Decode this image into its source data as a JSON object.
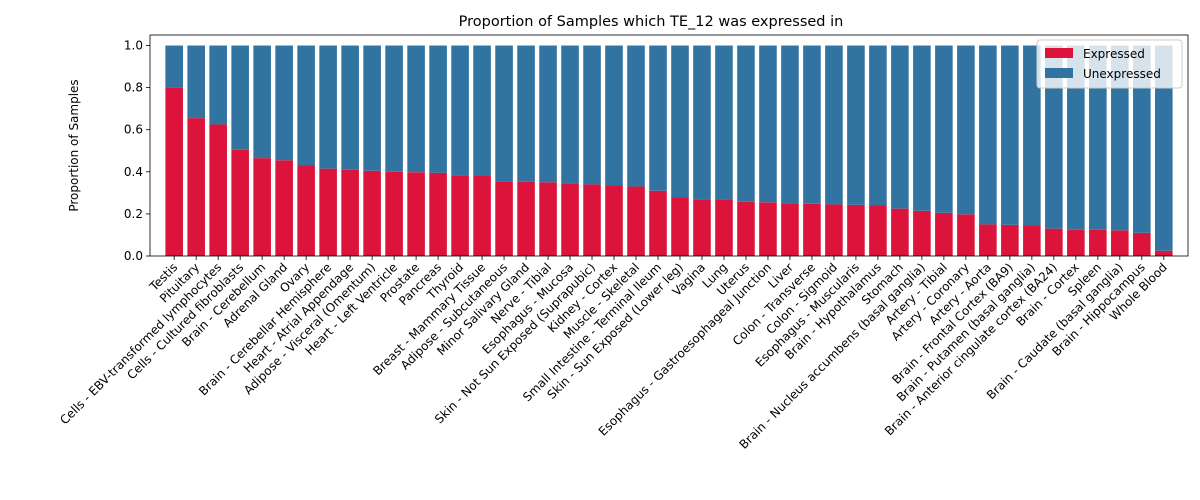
{
  "chart_data": {
    "type": "bar",
    "stacked": true,
    "title": "Proportion of Samples which TE_12 was expressed in",
    "xlabel": "",
    "ylabel": "Proportion of Samples",
    "ylim": [
      0,
      1.05
    ],
    "yticks": [
      "0.0",
      "0.2",
      "0.4",
      "0.6",
      "0.8",
      "1.0"
    ],
    "grid": false,
    "legend_position": "top-right",
    "categories": [
      "Testis",
      "Pituitary",
      "Cells - EBV-transformed lymphocytes",
      "Cells - Cultured fibroblasts",
      "Brain - Cerebellum",
      "Adrenal Gland",
      "Ovary",
      "Brain - Cerebellar Hemisphere",
      "Heart - Atrial Appendage",
      "Adipose - Visceral (Omentum)",
      "Heart - Left Ventricle",
      "Prostate",
      "Pancreas",
      "Thyroid",
      "Breast - Mammary Tissue",
      "Adipose - Subcutaneous",
      "Minor Salivary Gland",
      "Nerve - Tibial",
      "Esophagus - Mucosa",
      "Skin - Not Sun Exposed (Suprapubic)",
      "Kidney - Cortex",
      "Muscle - Skeletal",
      "Small Intestine - Terminal Ileum",
      "Skin - Sun Exposed (Lower leg)",
      "Vagina",
      "Lung",
      "Uterus",
      "Esophagus - Gastroesophageal Junction",
      "Liver",
      "Colon - Transverse",
      "Colon - Sigmoid",
      "Esophagus - Muscularis",
      "Brain - Hypothalamus",
      "Stomach",
      "Brain - Nucleus accumbens (basal ganglia)",
      "Artery - Tibial",
      "Artery - Coronary",
      "Artery - Aorta",
      "Brain - Frontal Cortex (BA9)",
      "Brain - Putamen (basal ganglia)",
      "Brain - Anterior cingulate cortex (BA24)",
      "Brain - Cortex",
      "Spleen",
      "Brain - Caudate (basal ganglia)",
      "Brain - Hippocampus",
      "Whole Blood"
    ],
    "series": [
      {
        "name": "Expressed",
        "color": "#dc143c",
        "values": [
          0.8,
          0.655,
          0.625,
          0.505,
          0.465,
          0.455,
          0.43,
          0.415,
          0.41,
          0.405,
          0.4,
          0.398,
          0.395,
          0.382,
          0.38,
          0.355,
          0.352,
          0.35,
          0.345,
          0.34,
          0.335,
          0.33,
          0.31,
          0.28,
          0.27,
          0.268,
          0.258,
          0.255,
          0.25,
          0.248,
          0.245,
          0.243,
          0.242,
          0.225,
          0.215,
          0.205,
          0.198,
          0.15,
          0.148,
          0.145,
          0.13,
          0.125,
          0.125,
          0.122,
          0.11,
          0.025
        ]
      },
      {
        "name": "Unexpressed",
        "color": "#3274a1",
        "values": [
          0.2,
          0.345,
          0.375,
          0.495,
          0.535,
          0.545,
          0.57,
          0.585,
          0.59,
          0.595,
          0.6,
          0.602,
          0.605,
          0.618,
          0.62,
          0.645,
          0.648,
          0.65,
          0.655,
          0.66,
          0.665,
          0.67,
          0.69,
          0.72,
          0.73,
          0.732,
          0.742,
          0.745,
          0.75,
          0.752,
          0.755,
          0.757,
          0.758,
          0.775,
          0.785,
          0.795,
          0.802,
          0.85,
          0.852,
          0.855,
          0.87,
          0.875,
          0.875,
          0.878,
          0.89,
          0.975
        ]
      }
    ]
  }
}
